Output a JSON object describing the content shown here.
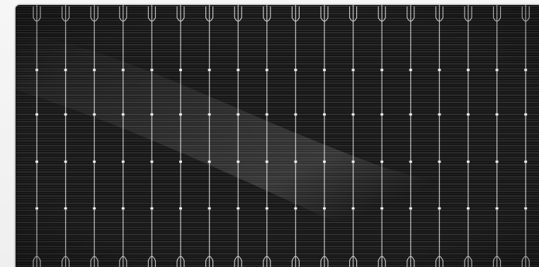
{
  "image": {
    "subject": "solar-panel-cells",
    "colors": {
      "background": "#f3f3f3",
      "cell": "#151515",
      "finger_line": "#5a5a5a",
      "busbar": "#d9d9d9",
      "glare": "#ffffff"
    },
    "busbar_count": 18,
    "solder_rows": 4
  }
}
